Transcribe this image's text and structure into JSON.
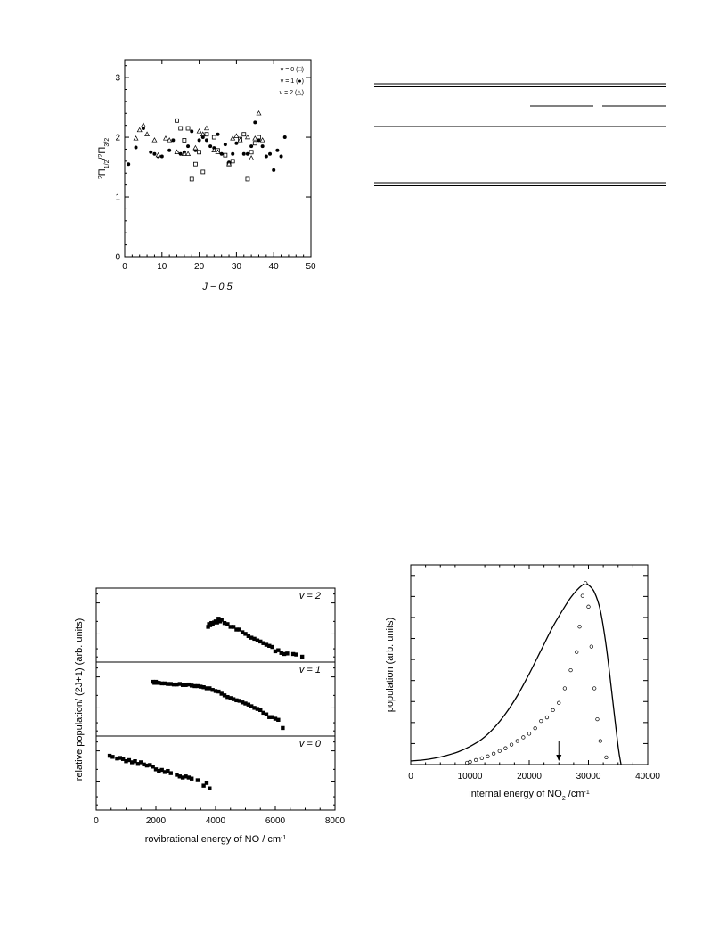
{
  "chart_data": [
    {
      "type": "scatter",
      "xlabel": "J − 0.5",
      "ylabel_main": "Π",
      "ylabel_sub1": "1/2",
      "ylabel_sep": "/",
      "ylabel_sub2": "3/2",
      "ylabel_sup": "2",
      "xlim": [
        0,
        50
      ],
      "ylim": [
        0,
        3.3
      ],
      "xticks": [
        "0",
        "10",
        "20",
        "30",
        "40",
        "50"
      ],
      "yticks": [
        "0",
        "1",
        "2",
        "3"
      ],
      "legend_position": "top-right",
      "series": [
        {
          "name": "v = 0 (□)",
          "marker": "square",
          "points": [
            [
              14,
              2.28
            ],
            [
              15,
              2.15
            ],
            [
              16,
              1.95
            ],
            [
              17,
              2.15
            ],
            [
              18,
              1.3
            ],
            [
              19,
              1.55
            ],
            [
              20,
              1.75
            ],
            [
              21,
              1.42
            ],
            [
              22,
              2.05
            ],
            [
              24,
              2.0
            ],
            [
              25,
              1.78
            ],
            [
              27,
              1.7
            ],
            [
              28,
              1.55
            ],
            [
              29,
              1.6
            ],
            [
              31,
              1.97
            ],
            [
              32,
              2.05
            ],
            [
              33,
              1.3
            ],
            [
              34,
              1.75
            ],
            [
              35,
              1.9
            ],
            [
              36,
              2.0
            ]
          ]
        },
        {
          "name": "v = 1 (●)",
          "marker": "circle",
          "points": [
            [
              1,
              1.55
            ],
            [
              3,
              1.83
            ],
            [
              5,
              2.15
            ],
            [
              7,
              1.75
            ],
            [
              8,
              1.72
            ],
            [
              9,
              1.68
            ],
            [
              10,
              1.68
            ],
            [
              12,
              1.78
            ],
            [
              13,
              1.95
            ],
            [
              14,
              1.75
            ],
            [
              15,
              1.72
            ],
            [
              16,
              1.75
            ],
            [
              17,
              1.85
            ],
            [
              18,
              2.1
            ],
            [
              19,
              1.78
            ],
            [
              20,
              1.95
            ],
            [
              21,
              2.0
            ],
            [
              22,
              1.95
            ],
            [
              23,
              1.85
            ],
            [
              24,
              1.82
            ],
            [
              25,
              2.05
            ],
            [
              26,
              1.72
            ],
            [
              27,
              1.88
            ],
            [
              28,
              1.58
            ],
            [
              29,
              1.72
            ],
            [
              30,
              1.9
            ],
            [
              32,
              1.72
            ],
            [
              33,
              1.72
            ],
            [
              34,
              1.85
            ],
            [
              35,
              2.25
            ],
            [
              36,
              1.95
            ],
            [
              37,
              1.85
            ],
            [
              38,
              1.68
            ],
            [
              39,
              1.72
            ],
            [
              40,
              1.45
            ],
            [
              41,
              1.78
            ],
            [
              42,
              1.68
            ],
            [
              43,
              2.0
            ]
          ]
        },
        {
          "name": "v = 2 (△)",
          "marker": "triangle",
          "points": [
            [
              3,
              1.98
            ],
            [
              4,
              2.12
            ],
            [
              5,
              2.2
            ],
            [
              6,
              2.05
            ],
            [
              8,
              1.95
            ],
            [
              9,
              1.7
            ],
            [
              11,
              1.98
            ],
            [
              12,
              1.95
            ],
            [
              14,
              1.75
            ],
            [
              16,
              1.72
            ],
            [
              17,
              1.72
            ],
            [
              19,
              1.82
            ],
            [
              20,
              2.1
            ],
            [
              21,
              2.05
            ],
            [
              22,
              2.15
            ],
            [
              24,
              1.78
            ],
            [
              25,
              1.75
            ],
            [
              28,
              1.55
            ],
            [
              29,
              1.98
            ],
            [
              30,
              2.02
            ],
            [
              31,
              1.95
            ],
            [
              33,
              2.0
            ],
            [
              34,
              1.65
            ],
            [
              35,
              1.98
            ],
            [
              36,
              2.4
            ],
            [
              37,
              1.95
            ]
          ]
        }
      ]
    },
    {
      "type": "table",
      "headers": [],
      "rows": []
    },
    {
      "type": "scatter",
      "xlabel": "rovibrational energy of NO / cm",
      "xlabel_sup": "-1",
      "ylabel": "relative population/ (2J+1) (arb. units)",
      "xlim": [
        0,
        8000
      ],
      "xticks": [
        "0",
        "2000",
        "4000",
        "6000",
        "8000"
      ],
      "panels": [
        {
          "label": "v = 2",
          "points": [
            [
              3750,
              0.55
            ],
            [
              3780,
              0.6
            ],
            [
              3820,
              0.58
            ],
            [
              3860,
              0.62
            ],
            [
              3900,
              0.6
            ],
            [
              3950,
              0.63
            ],
            [
              4000,
              0.65
            ],
            [
              4050,
              0.63
            ],
            [
              4100,
              0.7
            ],
            [
              4150,
              0.65
            ],
            [
              4200,
              0.68
            ],
            [
              4300,
              0.62
            ],
            [
              4400,
              0.6
            ],
            [
              4500,
              0.55
            ],
            [
              4600,
              0.55
            ],
            [
              4700,
              0.5
            ],
            [
              4800,
              0.5
            ],
            [
              4900,
              0.45
            ],
            [
              5000,
              0.42
            ],
            [
              5100,
              0.38
            ],
            [
              5200,
              0.35
            ],
            [
              5300,
              0.33
            ],
            [
              5400,
              0.3
            ],
            [
              5500,
              0.28
            ],
            [
              5600,
              0.25
            ],
            [
              5700,
              0.22
            ],
            [
              5800,
              0.2
            ],
            [
              5900,
              0.18
            ],
            [
              6000,
              0.1
            ],
            [
              6100,
              0.12
            ],
            [
              6200,
              0.07
            ],
            [
              6300,
              0.05
            ],
            [
              6400,
              0.06
            ],
            [
              6600,
              0.05
            ],
            [
              6700,
              0.04
            ],
            [
              6900,
              0.0
            ]
          ]
        },
        {
          "label": "v = 1",
          "points": [
            [
              1900,
              0.9
            ],
            [
              1950,
              0.88
            ],
            [
              2000,
              0.9
            ],
            [
              2050,
              0.88
            ],
            [
              2100,
              0.88
            ],
            [
              2200,
              0.87
            ],
            [
              2300,
              0.87
            ],
            [
              2400,
              0.86
            ],
            [
              2500,
              0.86
            ],
            [
              2600,
              0.85
            ],
            [
              2700,
              0.85
            ],
            [
              2800,
              0.86
            ],
            [
              2900,
              0.84
            ],
            [
              3000,
              0.84
            ],
            [
              3100,
              0.85
            ],
            [
              3200,
              0.83
            ],
            [
              3300,
              0.82
            ],
            [
              3400,
              0.82
            ],
            [
              3500,
              0.81
            ],
            [
              3600,
              0.8
            ],
            [
              3700,
              0.78
            ],
            [
              3800,
              0.78
            ],
            [
              3900,
              0.75
            ],
            [
              4000,
              0.73
            ],
            [
              4100,
              0.72
            ],
            [
              4200,
              0.68
            ],
            [
              4300,
              0.65
            ],
            [
              4400,
              0.62
            ],
            [
              4500,
              0.6
            ],
            [
              4600,
              0.58
            ],
            [
              4700,
              0.56
            ],
            [
              4800,
              0.55
            ],
            [
              4900,
              0.52
            ],
            [
              5000,
              0.5
            ],
            [
              5100,
              0.48
            ],
            [
              5200,
              0.45
            ],
            [
              5300,
              0.42
            ],
            [
              5400,
              0.4
            ],
            [
              5500,
              0.38
            ],
            [
              5600,
              0.33
            ],
            [
              5700,
              0.3
            ],
            [
              5800,
              0.25
            ],
            [
              5900,
              0.25
            ],
            [
              6000,
              0.22
            ],
            [
              6100,
              0.2
            ],
            [
              6250,
              0.05
            ]
          ]
        },
        {
          "label": "v = 0",
          "points": [
            [
              450,
              0.9
            ],
            [
              550,
              0.88
            ],
            [
              700,
              0.85
            ],
            [
              800,
              0.86
            ],
            [
              900,
              0.84
            ],
            [
              1000,
              0.8
            ],
            [
              1100,
              0.82
            ],
            [
              1200,
              0.78
            ],
            [
              1300,
              0.8
            ],
            [
              1400,
              0.75
            ],
            [
              1500,
              0.78
            ],
            [
              1600,
              0.74
            ],
            [
              1700,
              0.72
            ],
            [
              1800,
              0.73
            ],
            [
              1900,
              0.7
            ],
            [
              2000,
              0.65
            ],
            [
              2100,
              0.62
            ],
            [
              2200,
              0.64
            ],
            [
              2300,
              0.6
            ],
            [
              2400,
              0.62
            ],
            [
              2500,
              0.58
            ],
            [
              2700,
              0.55
            ],
            [
              2800,
              0.52
            ],
            [
              2900,
              0.5
            ],
            [
              3000,
              0.52
            ],
            [
              3100,
              0.5
            ],
            [
              3200,
              0.48
            ],
            [
              3400,
              0.45
            ],
            [
              3600,
              0.35
            ],
            [
              3700,
              0.4
            ],
            [
              3800,
              0.3
            ]
          ]
        }
      ]
    },
    {
      "type": "line",
      "xlabel": "internal energy of NO",
      "xlabel_sub": "2",
      "xlabel_unit": " /cm",
      "xlabel_sup": "-1",
      "ylabel": "population (arb. units)",
      "xlim": [
        0,
        40000
      ],
      "ylim": [
        0,
        1.1
      ],
      "xticks": [
        "0",
        "10000",
        "20000",
        "30000",
        "40000"
      ],
      "arrow_x": 25000,
      "curve": [
        [
          0,
          0.02
        ],
        [
          2000,
          0.025
        ],
        [
          4000,
          0.035
        ],
        [
          6000,
          0.05
        ],
        [
          8000,
          0.07
        ],
        [
          10000,
          0.1
        ],
        [
          12000,
          0.14
        ],
        [
          14000,
          0.2
        ],
        [
          16000,
          0.28
        ],
        [
          18000,
          0.38
        ],
        [
          20000,
          0.5
        ],
        [
          22000,
          0.63
        ],
        [
          24000,
          0.76
        ],
        [
          26000,
          0.87
        ],
        [
          27000,
          0.92
        ],
        [
          28000,
          0.96
        ],
        [
          29000,
          0.99
        ],
        [
          29500,
          1.0
        ],
        [
          30000,
          0.99
        ],
        [
          31000,
          0.95
        ],
        [
          32000,
          0.85
        ],
        [
          33000,
          0.65
        ],
        [
          34000,
          0.38
        ],
        [
          35000,
          0.1
        ],
        [
          35500,
          0.0
        ]
      ],
      "points": [
        [
          9500,
          0.01
        ],
        [
          10000,
          0.015
        ],
        [
          11000,
          0.025
        ],
        [
          12000,
          0.035
        ],
        [
          13000,
          0.045
        ],
        [
          14000,
          0.06
        ],
        [
          15000,
          0.075
        ],
        [
          16000,
          0.09
        ],
        [
          17000,
          0.11
        ],
        [
          18000,
          0.13
        ],
        [
          19000,
          0.15
        ],
        [
          20000,
          0.17
        ],
        [
          21000,
          0.2
        ],
        [
          22000,
          0.24
        ],
        [
          23000,
          0.26
        ],
        [
          24000,
          0.3
        ],
        [
          25000,
          0.34
        ],
        [
          26000,
          0.42
        ],
        [
          27000,
          0.52
        ],
        [
          28000,
          0.62
        ],
        [
          28500,
          0.76
        ],
        [
          29000,
          0.93
        ],
        [
          29500,
          1.0
        ],
        [
          30000,
          0.87
        ],
        [
          30500,
          0.65
        ],
        [
          31000,
          0.42
        ],
        [
          31500,
          0.25
        ],
        [
          32000,
          0.13
        ],
        [
          33000,
          0.04
        ]
      ]
    }
  ]
}
